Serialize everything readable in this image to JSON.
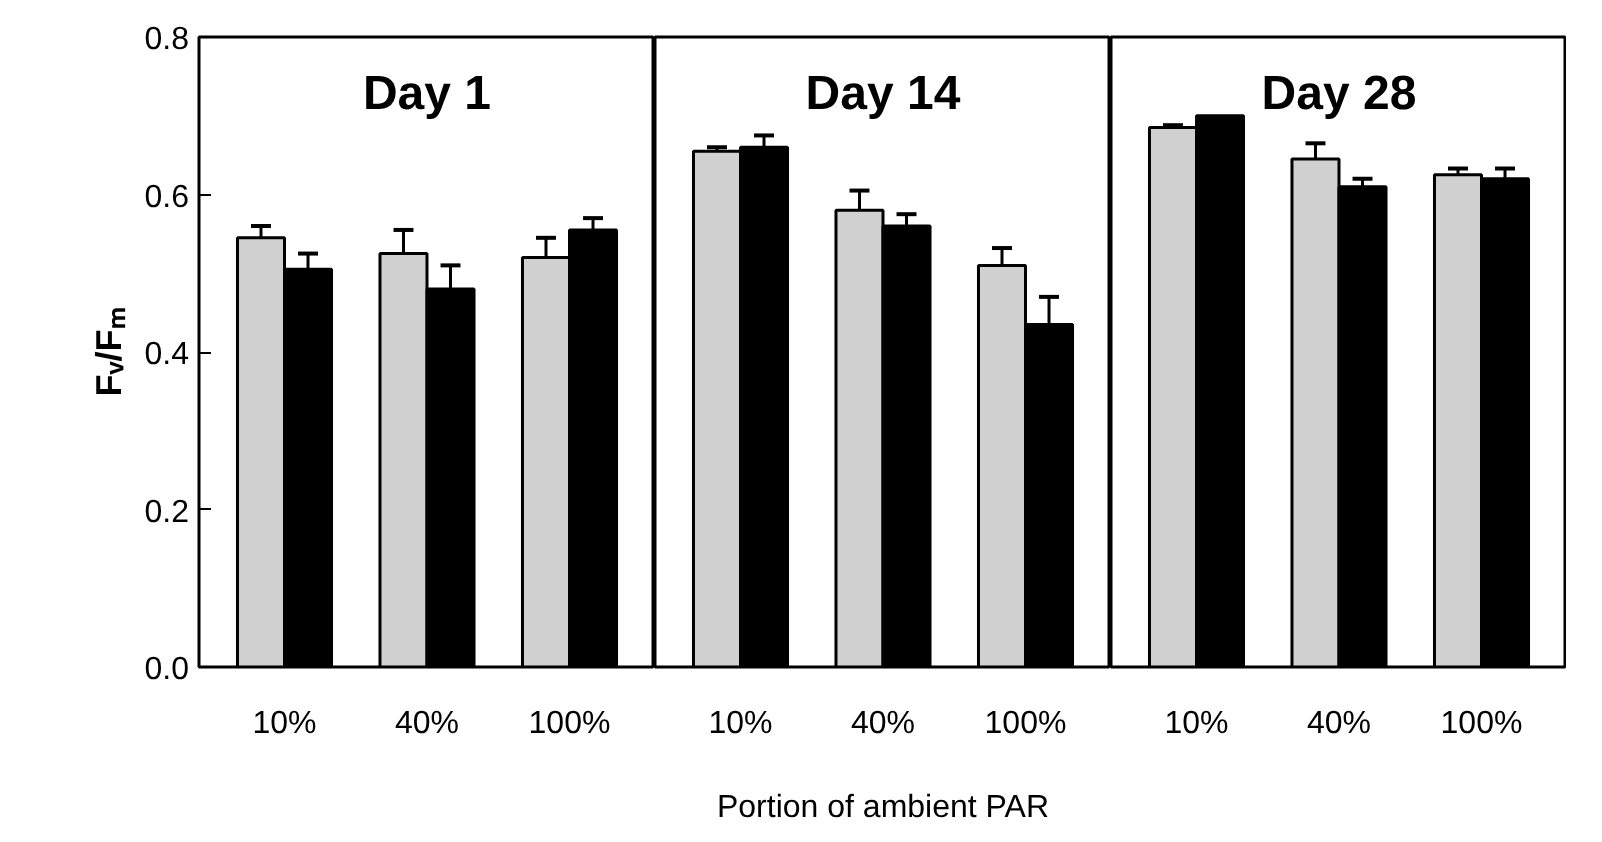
{
  "chart_data": [
    {
      "type": "bar",
      "title": "Day 1",
      "ylabel": "Fᵥ/Fₘ",
      "categories": [
        "10%",
        "40%",
        "100%"
      ],
      "ylim": [
        0,
        0.8
      ],
      "yticks": [
        {
          "value": 0,
          "label": "0.0"
        },
        0.2,
        0.4,
        0.6,
        0.8
      ],
      "grid": false,
      "series": [
        {
          "color": "#d0d0d0",
          "values": [
            0.545,
            0.525,
            0.52
          ],
          "errors": [
            [
              0.545,
              0.56
            ],
            [
              0.525,
              0.555
            ],
            [
              0.52,
              0.545
            ]
          ]
        },
        {
          "color": "#000000",
          "values": [
            0.505,
            0.48,
            0.555
          ],
          "errors": [
            [
              0.505,
              0.525
            ],
            [
              0.48,
              0.51
            ],
            [
              0.555,
              0.57
            ]
          ]
        }
      ]
    },
    {
      "type": "bar",
      "title": "Day 14",
      "xlabel": "Portion of ambient PAR",
      "categories": [
        "10%",
        "40%",
        "100%"
      ],
      "ylim": [
        0,
        0.8
      ],
      "tick_labels": "x",
      "grid": false,
      "series": [
        {
          "color": "#d0d0d0",
          "values": [
            0.655,
            0.58,
            0.51
          ],
          "errors": [
            [
              0.655,
              0.66
            ],
            [
              0.58,
              0.605
            ],
            [
              0.51,
              0.532
            ]
          ]
        },
        {
          "color": "#000000",
          "values": [
            0.66,
            0.56,
            0.435
          ],
          "errors": [
            [
              0.66,
              0.675
            ],
            [
              0.56,
              0.575
            ],
            [
              0.435,
              0.47
            ]
          ]
        }
      ]
    },
    {
      "type": "bar",
      "title": "Day 28",
      "categories": [
        "10%",
        "40%",
        "100%"
      ],
      "ylim": [
        0,
        0.8
      ],
      "tick_labels": "x",
      "grid": false,
      "series": [
        {
          "color": "#d0d0d0",
          "values": [
            0.685,
            0.645,
            0.625
          ],
          "errors": [
            [
              0.685,
              0.688
            ],
            [
              0.645,
              0.665
            ],
            [
              0.625,
              0.633
            ]
          ]
        },
        {
          "color": "#000000",
          "values": [
            0.7,
            0.61,
            0.62
          ],
          "errors": [
            null,
            [
              0.61,
              0.62
            ],
            [
              0.62,
              0.633
            ]
          ]
        }
      ]
    }
  ]
}
